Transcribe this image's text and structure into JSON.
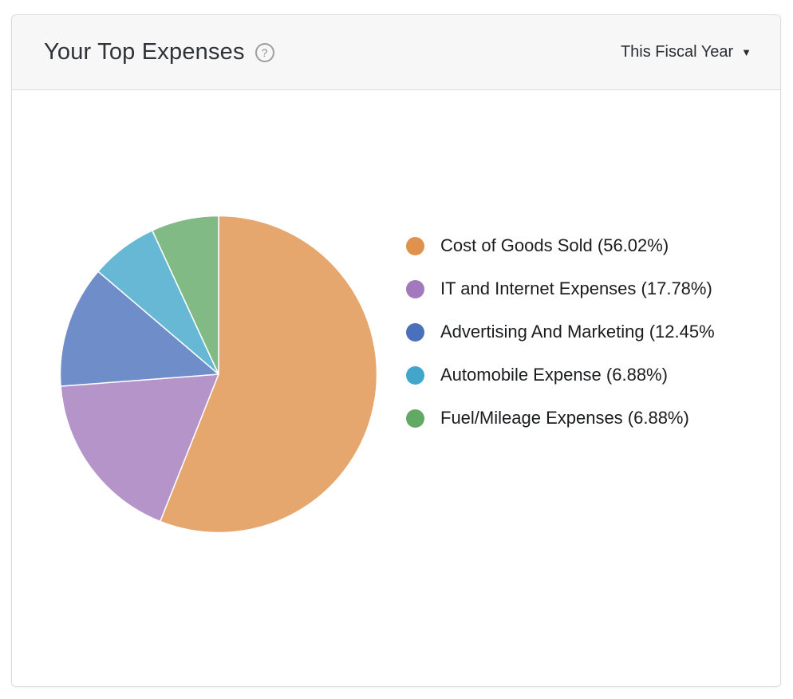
{
  "header": {
    "title": "Your Top Expenses",
    "help_glyph": "?",
    "period": "This Fiscal Year",
    "caret_glyph": "▼"
  },
  "colors": {
    "header_bg": "#F7F7F7",
    "card_border": "#DBDBDB",
    "header_border": "#DCDCDC",
    "title_text": "#2F3237",
    "legend_text": "#1B1C1E",
    "help_icon": "#9B9B9B",
    "slice_stroke": "#FFFFFF"
  },
  "chart_data": {
    "type": "pie",
    "title": "Your Top Expenses",
    "period": "This Fiscal Year",
    "direction": "clockwise",
    "start_angle_deg": 0,
    "pie_fill_opacity": 0.8,
    "legend_position": "right",
    "slices": [
      {
        "label": "Cost of Goods Sold",
        "value": 56.02,
        "color": "#E0914B",
        "legend_text": "Cost of Goods Sold (56.02%)"
      },
      {
        "label": "IT and Internet Expenses",
        "value": 17.78,
        "color": "#A279BC",
        "legend_text": "IT and Internet Expenses (17.78%)"
      },
      {
        "label": "Advertising And Marketing",
        "value": 12.45,
        "color": "#4A70BB",
        "legend_text": "Advertising And Marketing (12.45%"
      },
      {
        "label": "Automobile Expense",
        "value": 6.88,
        "color": "#41A6C9",
        "legend_text": "Automobile Expense (6.88%)"
      },
      {
        "label": "Fuel/Mileage Expenses",
        "value": 6.88,
        "color": "#63A966",
        "legend_text": "Fuel/Mileage Expenses (6.88%)"
      }
    ]
  }
}
